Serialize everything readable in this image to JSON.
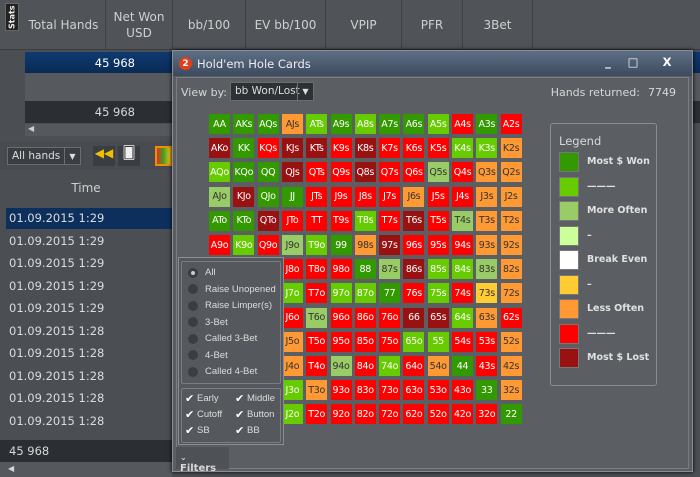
{
  "header": {
    "stats_tab": "Stats",
    "columns": [
      "Total Hands",
      "Net Won USD",
      "bb/100",
      "EV bb/100",
      "VPIP",
      "PFR",
      "3Bet"
    ]
  },
  "summary_rows": [
    "45 968",
    "45 968"
  ],
  "toolbar": {
    "filter_select": "All hands"
  },
  "time_list": {
    "header": "Time",
    "rows": [
      "01.09.2015 1:29",
      "01.09.2015 1:29",
      "01.09.2015 1:29",
      "01.09.2015 1:29",
      "01.09.2015 1:29",
      "01.09.2015 1:28",
      "01.09.2015 1:28",
      "01.09.2015 1:28",
      "01.09.2015 1:28",
      "01.09.2015 1:28"
    ],
    "footer_total": "45 968"
  },
  "dialog": {
    "badge": "2",
    "title": "Hold'em Hole Cards",
    "minimize": "_",
    "maximize": "□",
    "close": "X",
    "view_by_label": "View by:",
    "view_by_value": "bb Won/Lost",
    "hands_returned_label": "Hands returned:",
    "hands_returned": "7749"
  },
  "colors": {
    "G": "#339900",
    "L": "#66cc00",
    "P": "#99cc66",
    "W": "#ccff99",
    "B": "#ffffff",
    "Y": "#ffcc33",
    "O": "#ff9933",
    "R": "#ff0000",
    "D": "#991111"
  },
  "grid": [
    [
      [
        "AA",
        "G"
      ],
      [
        "AKs",
        "G"
      ],
      [
        "AQs",
        "G"
      ],
      [
        "AJs",
        "O"
      ],
      [
        "ATs",
        "L"
      ],
      [
        "A9s",
        "G"
      ],
      [
        "A8s",
        "L"
      ],
      [
        "A7s",
        "G"
      ],
      [
        "A6s",
        "G"
      ],
      [
        "A5s",
        "L"
      ],
      [
        "A4s",
        "R"
      ],
      [
        "A3s",
        "G"
      ],
      [
        "A2s",
        "R"
      ]
    ],
    [
      [
        "AKo",
        "D"
      ],
      [
        "KK",
        "G"
      ],
      [
        "KQs",
        "R"
      ],
      [
        "KJs",
        "D"
      ],
      [
        "KTs",
        "D"
      ],
      [
        "K9s",
        "R"
      ],
      [
        "K8s",
        "D"
      ],
      [
        "K7s",
        "R"
      ],
      [
        "K6s",
        "R"
      ],
      [
        "K5s",
        "R"
      ],
      [
        "K4s",
        "L"
      ],
      [
        "K3s",
        "L"
      ],
      [
        "K2s",
        "O"
      ]
    ],
    [
      [
        "AQo",
        "L"
      ],
      [
        "KQo",
        "G"
      ],
      [
        "QQ",
        "G"
      ],
      [
        "QJs",
        "D"
      ],
      [
        "QTs",
        "R"
      ],
      [
        "Q9s",
        "R"
      ],
      [
        "Q8s",
        "D"
      ],
      [
        "Q7s",
        "R"
      ],
      [
        "Q6s",
        "R"
      ],
      [
        "Q5s",
        "P"
      ],
      [
        "Q4s",
        "R"
      ],
      [
        "Q3s",
        "O"
      ],
      [
        "Q2s",
        "O"
      ]
    ],
    [
      [
        "AJo",
        "P"
      ],
      [
        "KJo",
        "D"
      ],
      [
        "QJo",
        "G"
      ],
      [
        "JJ",
        "G"
      ],
      [
        "JTs",
        "R"
      ],
      [
        "J9s",
        "R"
      ],
      [
        "J8s",
        "R"
      ],
      [
        "J7s",
        "R"
      ],
      [
        "J6s",
        "O"
      ],
      [
        "J5s",
        "R"
      ],
      [
        "J4s",
        "R"
      ],
      [
        "J3s",
        "O"
      ],
      [
        "J2s",
        "O"
      ]
    ],
    [
      [
        "ATo",
        "G"
      ],
      [
        "KTo",
        "G"
      ],
      [
        "QTo",
        "D"
      ],
      [
        "JTo",
        "R"
      ],
      [
        "TT",
        "R"
      ],
      [
        "T9s",
        "R"
      ],
      [
        "T8s",
        "L"
      ],
      [
        "T7s",
        "R"
      ],
      [
        "T6s",
        "D"
      ],
      [
        "T5s",
        "R"
      ],
      [
        "T4s",
        "P"
      ],
      [
        "T3s",
        "O"
      ],
      [
        "T2s",
        "O"
      ]
    ],
    [
      [
        "A9o",
        "R"
      ],
      [
        "K9o",
        "L"
      ],
      [
        "Q9o",
        "R"
      ],
      [
        "J9o",
        "P"
      ],
      [
        "T9o",
        "L"
      ],
      [
        "99",
        "G"
      ],
      [
        "98s",
        "O"
      ],
      [
        "97s",
        "D"
      ],
      [
        "96s",
        "R"
      ],
      [
        "95s",
        "R"
      ],
      [
        "94s",
        "R"
      ],
      [
        "93s",
        "O"
      ],
      [
        "92s",
        "O"
      ]
    ],
    [
      null,
      null,
      null,
      [
        "J8o",
        "R"
      ],
      [
        "T8o",
        "R"
      ],
      [
        "98o",
        "R"
      ],
      [
        "88",
        "G"
      ],
      [
        "87s",
        "P"
      ],
      [
        "86s",
        "D"
      ],
      [
        "85s",
        "L"
      ],
      [
        "84s",
        "L"
      ],
      [
        "83s",
        "P"
      ],
      [
        "82s",
        "O"
      ]
    ],
    [
      null,
      null,
      null,
      [
        "J7o",
        "L"
      ],
      [
        "T7o",
        "R"
      ],
      [
        "97o",
        "L"
      ],
      [
        "87o",
        "L"
      ],
      [
        "77",
        "G"
      ],
      [
        "76s",
        "R"
      ],
      [
        "75s",
        "L"
      ],
      [
        "74s",
        "R"
      ],
      [
        "73s",
        "Y"
      ],
      [
        "72s",
        "O"
      ]
    ],
    [
      null,
      null,
      null,
      [
        "J6o",
        "R"
      ],
      [
        "T6o",
        "P"
      ],
      [
        "96o",
        "R"
      ],
      [
        "86o",
        "R"
      ],
      [
        "76o",
        "R"
      ],
      [
        "66",
        "D"
      ],
      [
        "65s",
        "D"
      ],
      [
        "64s",
        "L"
      ],
      [
        "63s",
        "O"
      ],
      [
        "62s",
        "R"
      ]
    ],
    [
      null,
      null,
      null,
      [
        "J5o",
        "O"
      ],
      [
        "T5o",
        "R"
      ],
      [
        "95o",
        "R"
      ],
      [
        "85o",
        "R"
      ],
      [
        "75o",
        "R"
      ],
      [
        "65o",
        "L"
      ],
      [
        "55",
        "L"
      ],
      [
        "54s",
        "R"
      ],
      [
        "53s",
        "R"
      ],
      [
        "52s",
        "O"
      ]
    ],
    [
      null,
      null,
      null,
      [
        "J4o",
        "O"
      ],
      [
        "T4o",
        "R"
      ],
      [
        "94o",
        "P"
      ],
      [
        "84o",
        "R"
      ],
      [
        "74o",
        "L"
      ],
      [
        "64o",
        "R"
      ],
      [
        "54o",
        "O"
      ],
      [
        "44",
        "G"
      ],
      [
        "43s",
        "R"
      ],
      [
        "42s",
        "O"
      ]
    ],
    [
      null,
      null,
      null,
      [
        "J3o",
        "L"
      ],
      [
        "T3o",
        "O"
      ],
      [
        "93o",
        "R"
      ],
      [
        "83o",
        "R"
      ],
      [
        "73o",
        "R"
      ],
      [
        "63o",
        "R"
      ],
      [
        "53o",
        "R"
      ],
      [
        "43o",
        "R"
      ],
      [
        "33",
        "G"
      ],
      [
        "32s",
        "O"
      ]
    ],
    [
      null,
      null,
      null,
      [
        "J2o",
        "L"
      ],
      [
        "T2o",
        "R"
      ],
      [
        "92o",
        "R"
      ],
      [
        "82o",
        "R"
      ],
      [
        "72o",
        "R"
      ],
      [
        "62o",
        "R"
      ],
      [
        "52o",
        "R"
      ],
      [
        "42o",
        "R"
      ],
      [
        "32o",
        "R"
      ],
      [
        "22",
        "G"
      ]
    ]
  ],
  "legend": {
    "title": "Legend",
    "items": [
      {
        "color": "G",
        "label": "Most $ Won"
      },
      {
        "color": "L",
        "label": "———"
      },
      {
        "color": "P",
        "label": "More Often"
      },
      {
        "color": "W",
        "label": "–"
      },
      {
        "color": "B",
        "label": "Break Even"
      },
      {
        "color": "Y",
        "label": "–"
      },
      {
        "color": "O",
        "label": "Less Often"
      },
      {
        "color": "R",
        "label": "———"
      },
      {
        "color": "D",
        "label": "Most $ Lost"
      }
    ]
  },
  "filters": {
    "actions": [
      {
        "label": "All",
        "selected": true
      },
      {
        "label": "Raise Unopened",
        "selected": false
      },
      {
        "label": "Raise Limper(s)",
        "selected": false
      },
      {
        "label": "3-Bet",
        "selected": false
      },
      {
        "label": "Called 3-Bet",
        "selected": false
      },
      {
        "label": "4-Bet",
        "selected": false
      },
      {
        "label": "Called 4-Bet",
        "selected": false
      }
    ],
    "positions": [
      {
        "label": "Early",
        "checked": true
      },
      {
        "label": "Middle",
        "checked": true
      },
      {
        "label": "Cutoff",
        "checked": true
      },
      {
        "label": "Button",
        "checked": true
      },
      {
        "label": "SB",
        "checked": true
      },
      {
        "label": "BB",
        "checked": true
      }
    ],
    "tab_label": "Filters"
  }
}
